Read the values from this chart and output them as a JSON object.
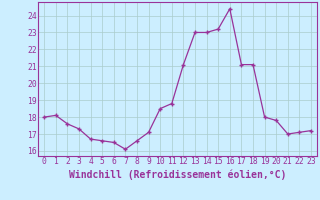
{
  "x": [
    0,
    1,
    2,
    3,
    4,
    5,
    6,
    7,
    8,
    9,
    10,
    11,
    12,
    13,
    14,
    15,
    16,
    17,
    18,
    19,
    20,
    21,
    22,
    23
  ],
  "y": [
    18.0,
    18.1,
    17.6,
    17.3,
    16.7,
    16.6,
    16.5,
    16.1,
    16.6,
    17.1,
    18.5,
    18.8,
    21.1,
    23.0,
    23.0,
    23.2,
    24.4,
    21.1,
    21.1,
    18.0,
    17.8,
    17.0,
    17.1,
    17.2
  ],
  "line_color": "#993399",
  "marker_color": "#993399",
  "bg_color": "#cceeff",
  "grid_color": "#aacccc",
  "xlabel": "Windchill (Refroidissement éolien,°C)",
  "ylim": [
    15.7,
    24.8
  ],
  "xlim": [
    -0.5,
    23.5
  ],
  "yticks": [
    16,
    17,
    18,
    19,
    20,
    21,
    22,
    23,
    24
  ],
  "xticks": [
    0,
    1,
    2,
    3,
    4,
    5,
    6,
    7,
    8,
    9,
    10,
    11,
    12,
    13,
    14,
    15,
    16,
    17,
    18,
    19,
    20,
    21,
    22,
    23
  ],
  "tick_label_fontsize": 5.8,
  "xlabel_fontsize": 7.0,
  "border_color": "#993399",
  "label_color": "#993399"
}
